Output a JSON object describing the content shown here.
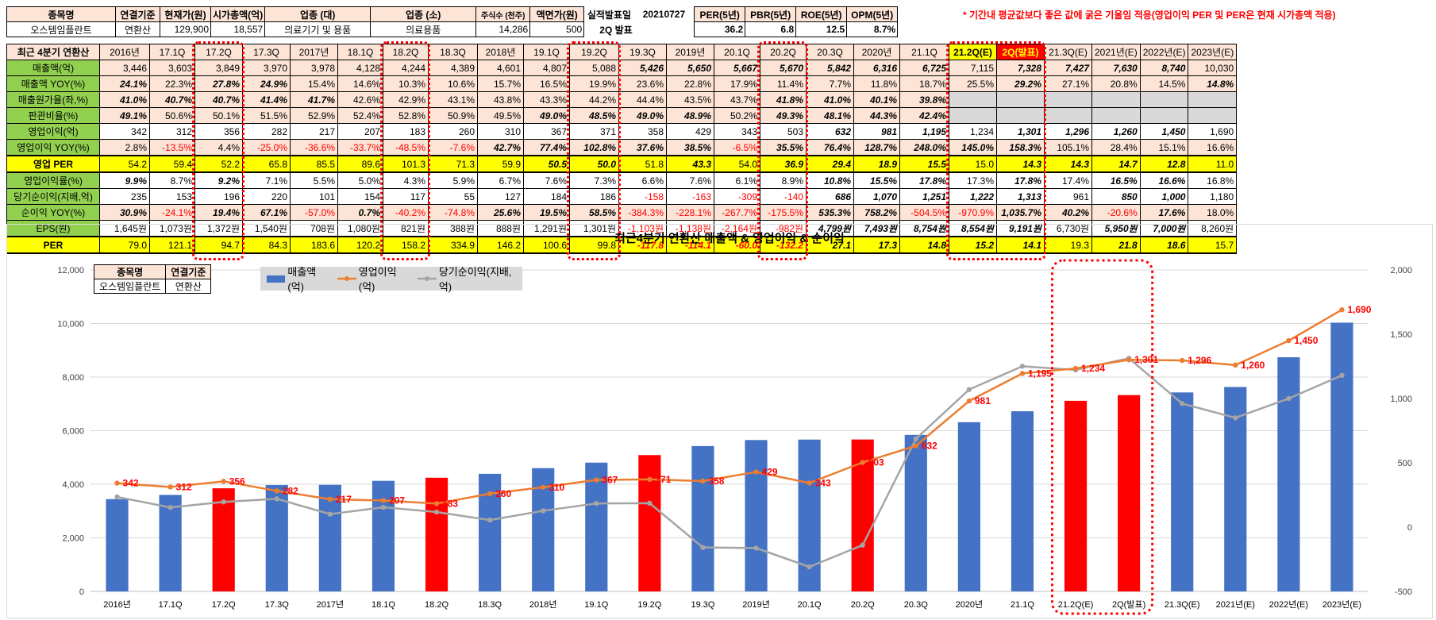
{
  "header": {
    "labels": [
      "종목명",
      "연결기준",
      "현재가(원)",
      "시가총액(억)",
      "업종 (대)",
      "업종 (소)",
      "주식수 (천주)",
      "액면가(원)",
      "실적발표일",
      "20210727",
      "PER(5년)",
      "PBR(5년)",
      "ROE(5년)",
      "OPM(5년)"
    ],
    "values": [
      "오스템임플란트",
      "연환산",
      "129,900",
      "18,557",
      "의료기기 및 용품",
      "의료용품",
      "14,286",
      "500",
      "2Q 발표",
      "",
      "36.2",
      "6.8",
      "12.5",
      "8.7%"
    ],
    "note": "* 기간내 평균값보다 좋은 값에 굵은 기울임 적용(영업이익 PER 및 PER은 현재 시가총액 적용)"
  },
  "table": {
    "corner": "최근 4분기 연환산",
    "columns": [
      "2016년",
      "17.1Q",
      "17.2Q",
      "17.3Q",
      "2017년",
      "18.1Q",
      "18.2Q",
      "18.3Q",
      "2018년",
      "19.1Q",
      "19.2Q",
      "19.3Q",
      "2019년",
      "20.1Q",
      "20.2Q",
      "20.3Q",
      "2020년",
      "21.1Q",
      "21.2Q(E)",
      "2Q(발표)",
      "21.3Q(E)",
      "2021년(E)",
      "2022년(E)",
      "2023년(E)"
    ],
    "rows": [
      {
        "label": "매출액(억)",
        "cells": [
          "3,446",
          "3,603",
          "3,849",
          "3,970",
          "3,978",
          "4,128",
          "4,244",
          "4,389",
          "4,601",
          "4,807",
          "5,088",
          "5,426",
          "5,650",
          "5,667",
          "5,670",
          "5,842",
          "6,316",
          "6,725",
          "7,115",
          "7,328",
          "7,427",
          "7,630",
          "8,740",
          "10,030"
        ]
      },
      {
        "label": "매출액 YOY(%)",
        "cells": [
          "24.1%",
          "22.3%",
          "27.8%",
          "24.9%",
          "15.4%",
          "14.6%",
          "10.3%",
          "10.6%",
          "15.7%",
          "16.5%",
          "19.9%",
          "23.6%",
          "22.8%",
          "17.9%",
          "11.4%",
          "7.7%",
          "11.8%",
          "18.7%",
          "25.5%",
          "29.2%",
          "27.1%",
          "20.8%",
          "14.5%",
          "14.8%"
        ]
      },
      {
        "label": "매출원가율(좌,%)",
        "cells": [
          "41.0%",
          "40.7%",
          "40.7%",
          "41.4%",
          "41.7%",
          "42.6%",
          "42.9%",
          "43.1%",
          "43.8%",
          "43.3%",
          "44.2%",
          "44.4%",
          "43.5%",
          "43.7%",
          "41.8%",
          "41.0%",
          "40.1%",
          "39.8%",
          "",
          "",
          "",
          "",
          "",
          ""
        ]
      },
      {
        "label": "판관비율(%)",
        "cells": [
          "49.1%",
          "50.6%",
          "50.1%",
          "51.5%",
          "52.9%",
          "52.4%",
          "52.8%",
          "50.9%",
          "49.5%",
          "49.0%",
          "48.5%",
          "49.0%",
          "48.9%",
          "50.2%",
          "49.3%",
          "48.1%",
          "44.3%",
          "42.4%",
          "",
          "",
          "",
          "",
          "",
          ""
        ]
      },
      {
        "label": "영업이익(억)",
        "cells": [
          "342",
          "312",
          "356",
          "282",
          "217",
          "207",
          "183",
          "260",
          "310",
          "367",
          "371",
          "358",
          "429",
          "343",
          "503",
          "632",
          "981",
          "1,195",
          "1,234",
          "1,301",
          "1,296",
          "1,260",
          "1,450",
          "1,690"
        ]
      },
      {
        "label": "영업이익 YOY(%)",
        "cells": [
          "2.8%",
          "-13.5%",
          "4.4%",
          "-25.0%",
          "-36.6%",
          "-33.7%",
          "-48.5%",
          "-7.6%",
          "42.7%",
          "77.4%",
          "102.8%",
          "37.6%",
          "38.5%",
          "-6.5%",
          "35.5%",
          "76.4%",
          "128.7%",
          "248.0%",
          "145.0%",
          "158.3%",
          "105.1%",
          "28.4%",
          "15.1%",
          "16.6%"
        ]
      },
      {
        "label": "영업 PER",
        "cells": [
          "54.2",
          "59.4",
          "52.2",
          "65.8",
          "85.5",
          "89.6",
          "101.3",
          "71.3",
          "59.9",
          "50.5",
          "50.0",
          "51.8",
          "43.3",
          "54.0",
          "36.9",
          "29.4",
          "18.9",
          "15.5",
          "15.0",
          "14.3",
          "14.3",
          "14.7",
          "12.8",
          "11.0"
        ]
      },
      {
        "label": "영업이익률(%)",
        "cells": [
          "9.9%",
          "8.7%",
          "9.2%",
          "7.1%",
          "5.5%",
          "5.0%",
          "4.3%",
          "5.9%",
          "6.7%",
          "7.6%",
          "7.3%",
          "6.6%",
          "7.6%",
          "6.1%",
          "8.9%",
          "10.8%",
          "15.5%",
          "17.8%",
          "17.3%",
          "17.8%",
          "17.4%",
          "16.5%",
          "16.6%",
          "16.8%"
        ]
      },
      {
        "label": "당기순이익(지배,억)",
        "cells": [
          "235",
          "153",
          "196",
          "220",
          "101",
          "154",
          "117",
          "55",
          "127",
          "184",
          "186",
          "-158",
          "-163",
          "-309",
          "-140",
          "686",
          "1,070",
          "1,251",
          "1,222",
          "1,313",
          "961",
          "850",
          "1,000",
          "1,180"
        ]
      },
      {
        "label": "순이익 YOY(%)",
        "cells": [
          "30.9%",
          "-24.1%",
          "19.4%",
          "67.1%",
          "-57.0%",
          "0.7%",
          "-40.2%",
          "-74.8%",
          "25.6%",
          "19.5%",
          "58.5%",
          "-384.3%",
          "-228.1%",
          "-267.7%",
          "-175.5%",
          "535.3%",
          "758.2%",
          "-504.5%",
          "-970.9%",
          "1,035.7%",
          "40.2%",
          "-20.6%",
          "17.6%",
          "18.0%"
        ]
      },
      {
        "label": "EPS(원)",
        "cells": [
          "1,645원",
          "1,073원",
          "1,372원",
          "1,540원",
          "708원",
          "1,080원",
          "821원",
          "388원",
          "888원",
          "1,291원",
          "1,301원",
          "-1,103원",
          "-1,138원",
          "-2,164원",
          "-982원",
          "4,799원",
          "7,493원",
          "8,754원",
          "8,554원",
          "9,191원",
          "6,730원",
          "5,950원",
          "7,000원",
          "8,260원"
        ]
      },
      {
        "label": "PER",
        "cells": [
          "79.0",
          "121.1",
          "94.7",
          "84.3",
          "183.6",
          "120.2",
          "158.2",
          "334.9",
          "146.2",
          "100.6",
          "99.8",
          "-117.8",
          "-114.1",
          "-60.0",
          "-132.2",
          "27.1",
          "17.3",
          "14.8",
          "15.2",
          "14.1",
          "19.3",
          "21.8",
          "18.6",
          "15.7"
        ]
      }
    ]
  },
  "chart_box": {
    "labels": [
      "종목명",
      "연결기준"
    ],
    "values": [
      "오스템임플란트",
      "연환산"
    ]
  },
  "chart_data": {
    "type": "bar",
    "title": "최근4분기 연환산 매출액 & 영업이익 & 순이익",
    "categories": [
      "2016년",
      "17.1Q",
      "17.2Q",
      "17.3Q",
      "2017년",
      "18.1Q",
      "18.2Q",
      "18.3Q",
      "2018년",
      "19.1Q",
      "19.2Q",
      "19.3Q",
      "2019년",
      "20.1Q",
      "20.2Q",
      "20.3Q",
      "2020년",
      "21.1Q",
      "21.2Q(E)",
      "2Q(발표)",
      "21.3Q(E)",
      "2021년(E)",
      "2022년(E)",
      "2023년(E)"
    ],
    "series": [
      {
        "name": "매출액(억)",
        "type": "bar",
        "axis": "left",
        "values": [
          3446,
          3603,
          3849,
          3970,
          3978,
          4128,
          4244,
          4389,
          4601,
          4807,
          5088,
          5426,
          5650,
          5667,
          5670,
          5842,
          6316,
          6725,
          7115,
          7328,
          7427,
          7630,
          8740,
          10030
        ],
        "color": "#4472c4",
        "highlight_color": "#ff0000",
        "highlight_indices": [
          2,
          6,
          10,
          14,
          18,
          19
        ]
      },
      {
        "name": "영업이익(억)",
        "type": "line",
        "axis": "right",
        "values": [
          342,
          312,
          356,
          282,
          217,
          207,
          183,
          260,
          310,
          367,
          371,
          358,
          429,
          343,
          503,
          632,
          981,
          1195,
          1234,
          1301,
          1296,
          1260,
          1450,
          1690
        ],
        "color": "#ed7d31",
        "data_labels": [
          "342",
          "312",
          "356",
          "282",
          "217",
          "207",
          "183",
          "260",
          "310",
          "367",
          "371",
          "358",
          "429",
          "343",
          "503",
          "632",
          "981",
          "1,195",
          "1,234",
          "1,301",
          "1,296",
          "1,260",
          "1,450",
          "1,690"
        ]
      },
      {
        "name": "당기순이익(지배,억)",
        "type": "line",
        "axis": "right",
        "values": [
          235,
          153,
          196,
          220,
          101,
          154,
          117,
          55,
          127,
          184,
          186,
          -158,
          -163,
          -309,
          -140,
          686,
          1070,
          1251,
          1222,
          1313,
          961,
          850,
          1000,
          1180
        ],
        "color": "#a5a5a5"
      }
    ],
    "yleft": {
      "min": 0,
      "max": 12000,
      "ticks": [
        "0",
        "2,000",
        "4,000",
        "6,000",
        "8,000",
        "10,000",
        "12,000"
      ]
    },
    "yright": {
      "min": -500,
      "max": 2000,
      "ticks": [
        "-500",
        "0",
        "500",
        "1,000",
        "1,500",
        "2,000"
      ]
    },
    "legend_position": "top-left",
    "grid": true
  }
}
